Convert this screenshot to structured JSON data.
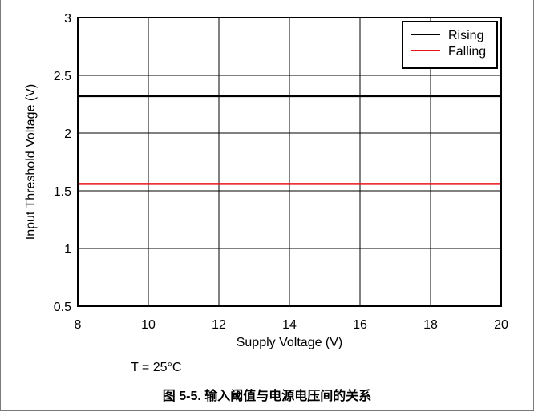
{
  "chart_data": {
    "type": "line",
    "title": "",
    "xlabel": "Supply Voltage (V)",
    "ylabel": "Input Threshold Voltage (V)",
    "xlim": [
      8,
      20
    ],
    "ylim": [
      0.5,
      3
    ],
    "xticks": [
      8,
      10,
      12,
      14,
      16,
      18,
      20
    ],
    "yticks": [
      0.5,
      1,
      1.5,
      2,
      2.5,
      3
    ],
    "xtick_labels": [
      "8",
      "10",
      "12",
      "14",
      "16",
      "18",
      "20"
    ],
    "ytick_labels": [
      "0.5",
      "1",
      "1.5",
      "2",
      "2.5",
      "3"
    ],
    "grid": true,
    "legend_position": "top-right",
    "series": [
      {
        "name": "Rising",
        "color": "#000000",
        "x": [
          8,
          10,
          12,
          14,
          16,
          18,
          20
        ],
        "y": [
          2.32,
          2.32,
          2.32,
          2.32,
          2.32,
          2.32,
          2.32
        ]
      },
      {
        "name": "Falling",
        "color": "#e8141b",
        "x": [
          8,
          10,
          12,
          14,
          16,
          18,
          20
        ],
        "y": [
          1.56,
          1.56,
          1.56,
          1.56,
          1.56,
          1.56,
          1.56
        ]
      }
    ]
  },
  "conditions": "T = 25°C",
  "caption": "图 5-5. 输入阈值与电源电压间的关系"
}
